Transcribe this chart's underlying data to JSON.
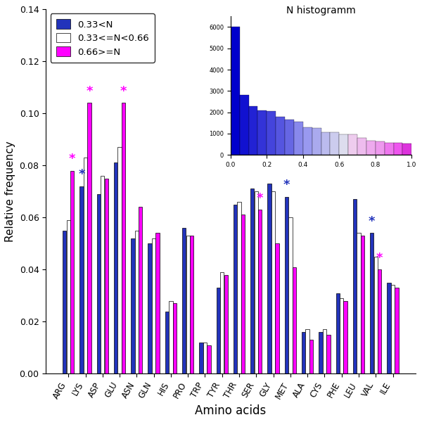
{
  "amino_acids": [
    "ARG",
    "LYS",
    "ASP",
    "GLU",
    "ASN",
    "GLN",
    "HIS",
    "PRO",
    "TRP",
    "TYR",
    "THR",
    "SER",
    "GLY",
    "MET",
    "ALA",
    "CYS",
    "PHE",
    "LEU",
    "VAL",
    "ILE"
  ],
  "blue": [
    0.055,
    0.072,
    0.069,
    0.081,
    0.052,
    0.05,
    0.024,
    0.056,
    0.012,
    0.033,
    0.065,
    0.071,
    0.073,
    0.068,
    0.016,
    0.016,
    0.031,
    0.067,
    0.054,
    0.035
  ],
  "white": [
    0.059,
    0.083,
    0.076,
    0.087,
    0.055,
    0.052,
    0.028,
    0.053,
    0.012,
    0.039,
    0.066,
    0.07,
    0.07,
    0.06,
    0.017,
    0.017,
    0.029,
    0.054,
    0.045,
    0.034
  ],
  "magenta": [
    0.078,
    0.104,
    0.075,
    0.104,
    0.064,
    0.054,
    0.027,
    0.053,
    0.011,
    0.038,
    0.061,
    0.063,
    0.05,
    0.041,
    0.013,
    0.015,
    0.028,
    0.053,
    0.04,
    0.033
  ],
  "star_blue": [
    0,
    1,
    0,
    0,
    0,
    0,
    0,
    0,
    0,
    0,
    0,
    0,
    0,
    1,
    0,
    0,
    0,
    0,
    1,
    0
  ],
  "star_magenta": [
    1,
    1,
    0,
    1,
    0,
    0,
    0,
    0,
    0,
    0,
    0,
    1,
    0,
    0,
    0,
    0,
    0,
    0,
    1,
    0
  ],
  "title": "N histogramm",
  "xlabel": "Amino acids",
  "ylabel": "Relative frequency",
  "ylim": [
    0.0,
    0.14
  ],
  "yticks": [
    0.0,
    0.02,
    0.04,
    0.06,
    0.08,
    0.1,
    0.12,
    0.14
  ],
  "legend_labels": [
    "0.33<N",
    "0.33<=N<0.66",
    "0.66>=N"
  ],
  "blue_color": "#2233bb",
  "white_color": "#ffffff",
  "magenta_color": "#ff00ff",
  "inset_values": [
    6000,
    2800,
    2300,
    2100,
    2050,
    1800,
    1650,
    1550,
    1300,
    1270,
    1060,
    1050,
    970,
    950,
    810,
    680,
    640,
    580,
    560,
    540
  ],
  "inset_colors": [
    "#0000cc",
    "#1111d0",
    "#2222d4",
    "#3333d8",
    "#4444dc",
    "#5555e0",
    "#6666e4",
    "#8888ec",
    "#9999f0",
    "#aaaaee",
    "#bbbbee",
    "#ccccee",
    "#ddddee",
    "#eeccee",
    "#eebcee",
    "#eeaaee",
    "#ee99ee",
    "#ee77ee",
    "#ee55ee",
    "#dd33dd"
  ],
  "inset_yticks": [
    0,
    1000,
    2000,
    3000,
    4000,
    5000,
    6000
  ],
  "inset_xticks": [
    0.0,
    0.2,
    0.4,
    0.6,
    0.8,
    1.0
  ]
}
